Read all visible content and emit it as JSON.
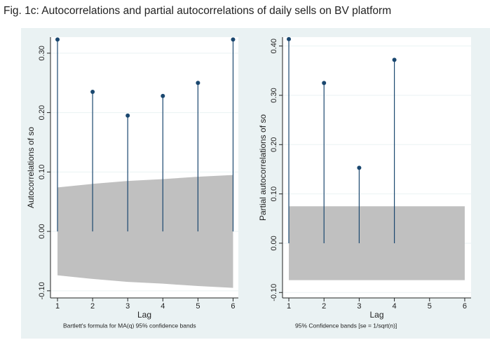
{
  "title": "Fig. 1c: Autocorrelations and partial autocorrelations of daily sells on BV platform",
  "chart_data": [
    {
      "type": "stem",
      "xlabel": "Lag",
      "ylabel": "Autocorrelations of so",
      "note": "Bartlett's formula for MA(q) 95% confidence bands",
      "x": [
        1,
        2,
        3,
        4,
        5,
        6
      ],
      "values": [
        0.323,
        0.235,
        0.195,
        0.228,
        0.25,
        0.323
      ],
      "color": "#1a476f",
      "band_color": "#c0c0c0",
      "band": {
        "x": [
          1,
          2,
          3,
          4,
          5,
          6
        ],
        "upper": [
          0.074,
          0.08,
          0.085,
          0.088,
          0.092,
          0.095
        ],
        "lower": [
          -0.074,
          -0.08,
          -0.085,
          -0.088,
          -0.092,
          -0.095
        ]
      },
      "xlim": [
        0.8,
        6.15
      ],
      "ylim": [
        -0.112,
        0.327
      ],
      "xticks": [
        1,
        2,
        3,
        4,
        5,
        6
      ],
      "yticks": [
        {
          "value": -0.1,
          "label": "-0.10"
        },
        {
          "value": 0,
          "label": "0.00"
        },
        {
          "value": 0.1,
          "label": "0.10"
        },
        {
          "value": 0.2,
          "label": "0.20"
        },
        {
          "value": 0.3,
          "label": "0.30"
        }
      ],
      "grid": true
    },
    {
      "type": "stem",
      "xlabel": "Lag",
      "ylabel": "Partial autocorrelations of so",
      "note": "95% Confidence bands [se = 1/sqrt(n)]",
      "x": [
        1,
        2,
        3,
        4
      ],
      "values": [
        0.414,
        0.325,
        0.153,
        0.372
      ],
      "color": "#1a476f",
      "band_color": "#c0c0c0",
      "band": {
        "x": [
          1,
          6
        ],
        "upper": [
          0.075,
          0.075
        ],
        "lower": [
          -0.075,
          -0.075
        ]
      },
      "xlim": [
        0.82,
        6.18
      ],
      "ylim": [
        -0.111,
        0.418
      ],
      "xticks": [
        1,
        2,
        3,
        4,
        5,
        6
      ],
      "yticks": [
        {
          "value": -0.1,
          "label": "-0.10"
        },
        {
          "value": 0,
          "label": "0.00"
        },
        {
          "value": 0.1,
          "label": "0.10"
        },
        {
          "value": 0.2,
          "label": "0.20"
        },
        {
          "value": 0.3,
          "label": "0.30"
        },
        {
          "value": 0.4,
          "label": "0.40"
        }
      ],
      "grid": true
    }
  ]
}
